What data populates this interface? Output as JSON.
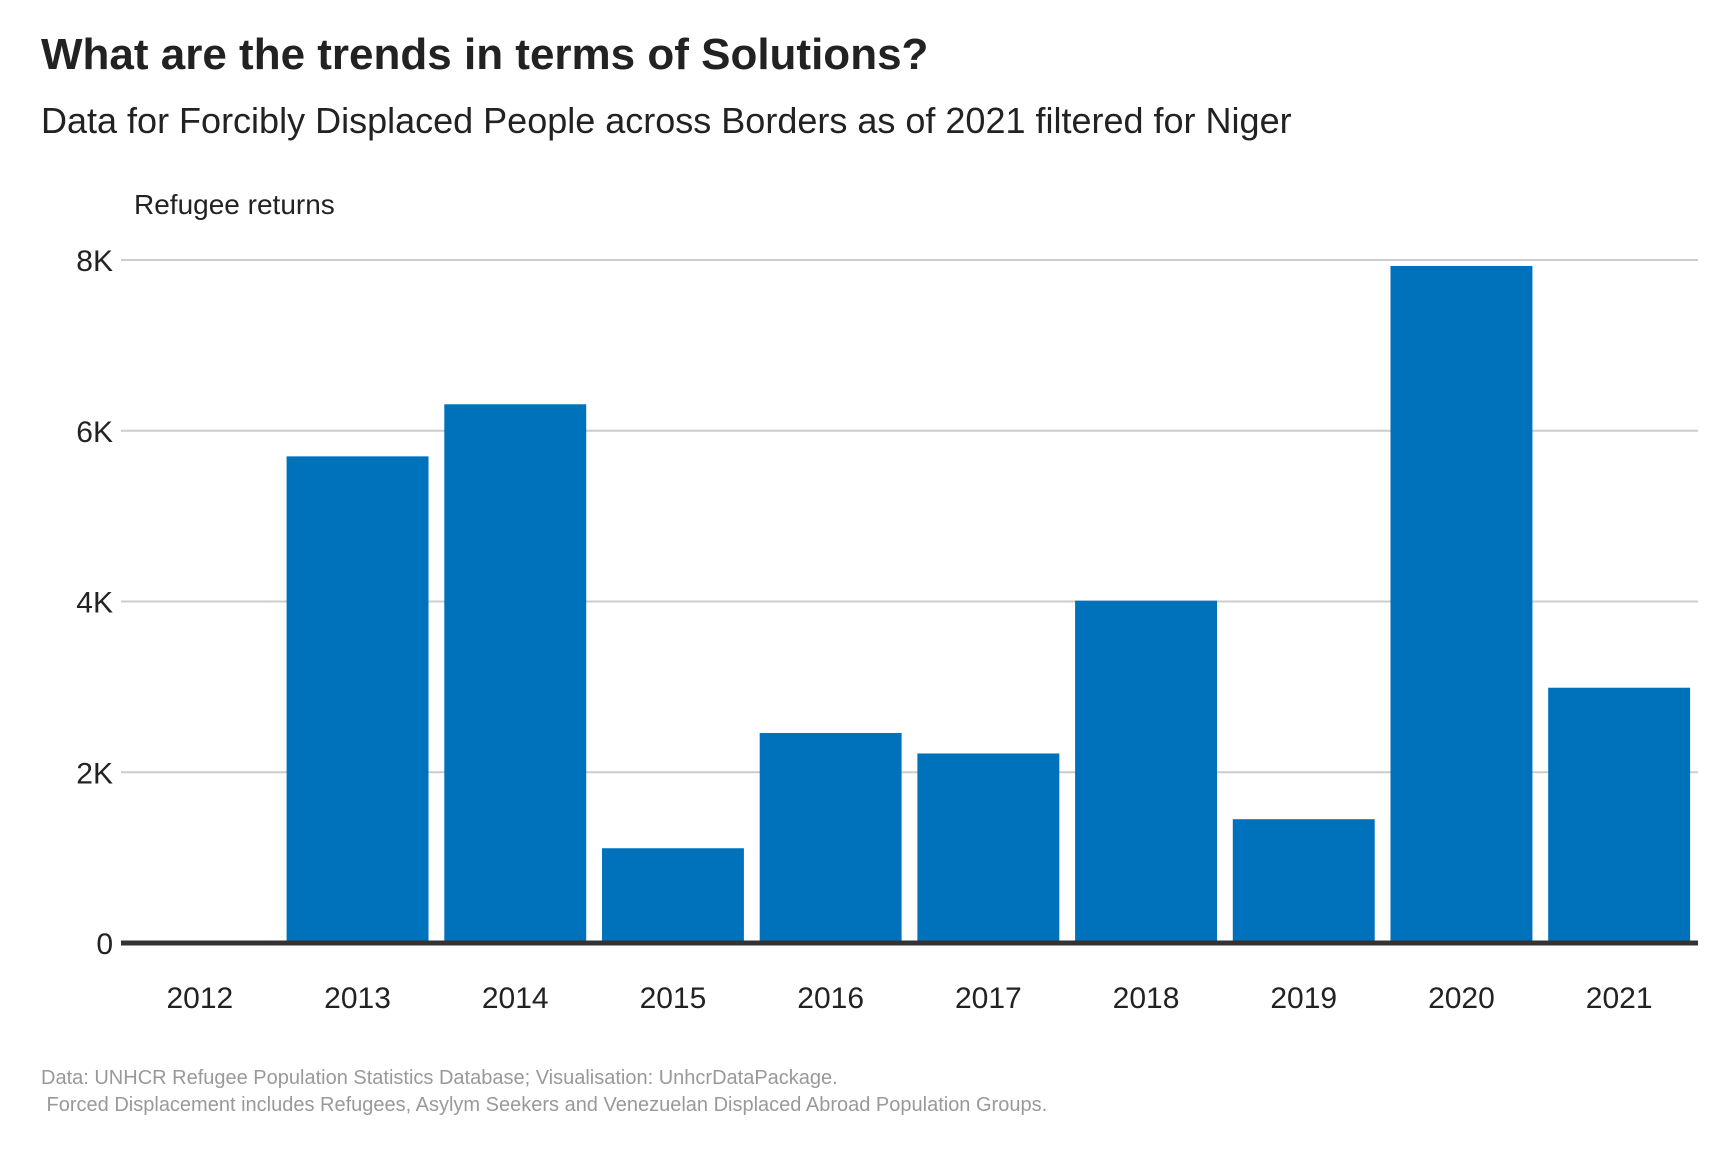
{
  "header": {
    "title": "What are the trends in terms of Solutions?",
    "subtitle": "Data for Forcibly Displaced People across Borders as of 2021 filtered for Niger"
  },
  "caption": {
    "line1": "Data: UNHCR Refugee Population Statistics Database; Visualisation: UnhcrDataPackage.",
    "line2": " Forced Displacement includes Refugees, Asylym Seekers and Venezuelan Displaced Abroad Population Groups."
  },
  "colors": {
    "bar": "#0072BC",
    "grid": "#cccccc",
    "baseline": "#333333",
    "text": "#222222",
    "caption": "#999999"
  },
  "chart_data": {
    "type": "bar",
    "title": "What are the trends in terms of Solutions?",
    "subtitle": "Data for Forcibly Displaced People across Borders as of 2021 filtered for Niger",
    "ylabel": "Refugee returns",
    "xlabel": "",
    "categories": [
      "2012",
      "2013",
      "2014",
      "2015",
      "2016",
      "2017",
      "2018",
      "2019",
      "2020",
      "2021"
    ],
    "series": [
      {
        "values": [
          0,
          5700,
          6310,
          1110,
          2460,
          2220,
          4010,
          1450,
          7930,
          2990
        ]
      }
    ],
    "ylim": [
      0,
      8000
    ],
    "yticks": [
      0,
      2000,
      4000,
      6000,
      8000
    ],
    "ytick_labels": [
      "0",
      "2K",
      "4K",
      "6K",
      "8K"
    ],
    "grid": "horizontal",
    "legend": "none"
  }
}
